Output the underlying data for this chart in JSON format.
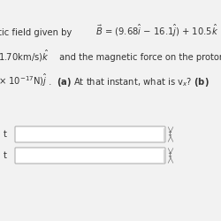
{
  "background_color": "#f2f2f2",
  "text_color": "#333333",
  "bold_color": "#111111",
  "line1_left": "tic field given by",
  "line1_right": "$\\vec{B}$ = (9.68$\\hat{i}$ − 16.1$\\hat{j}$) + 10.5$\\hat{k}$",
  "line2_left": "1.70km/s)$\\hat{k}$",
  "line2_right": " and the magnetic force on the proton",
  "line3_left": "$\\times$ 10$^{-17}$N)$\\hat{j}$",
  "line3_right": " .  ",
  "line3_bold": "(a) At that instant, what is v$_x$? (b)",
  "label_a": "t",
  "label_b": "t",
  "fig_width": 2.5,
  "fig_height": 2.5,
  "dpi": 100,
  "fontsize": 7.2
}
